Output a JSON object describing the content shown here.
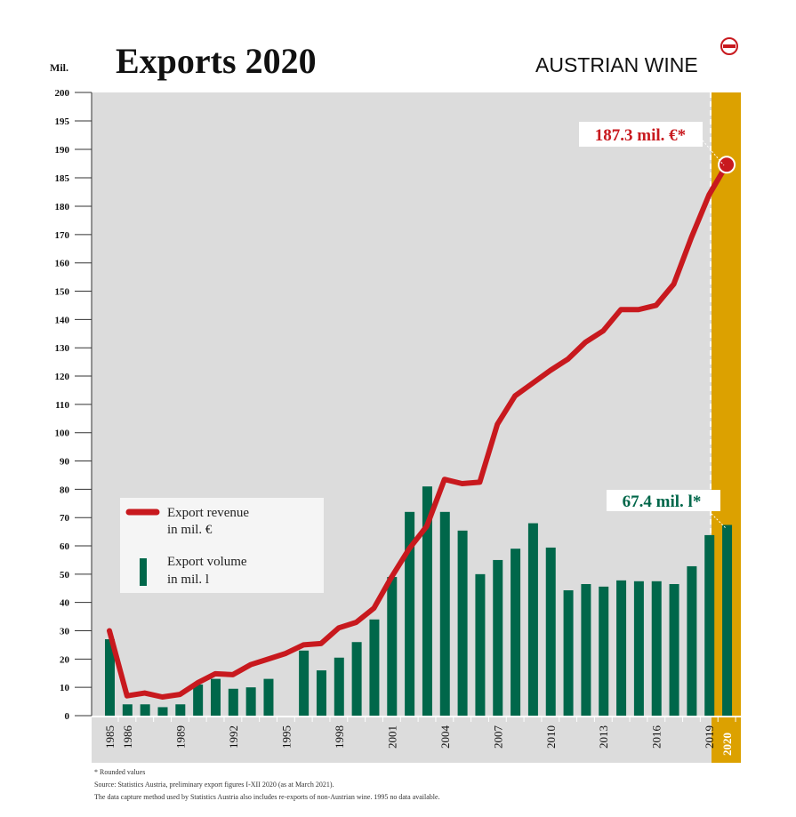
{
  "header": {
    "title": "Exports 2020",
    "unit": "Mil.",
    "logo": "AUSTRIAN WINE"
  },
  "chart_data": {
    "type": "bar+line",
    "title": "Exports 2020",
    "ylabel": "Mil.",
    "ylim": [
      0,
      200
    ],
    "yticks": [
      0,
      10,
      20,
      30,
      40,
      50,
      60,
      70,
      80,
      90,
      100,
      110,
      120,
      130,
      140,
      150,
      160,
      170,
      180,
      185,
      190,
      195,
      200
    ],
    "x": [
      1985,
      1986,
      1987,
      1988,
      1989,
      1990,
      1991,
      1992,
      1993,
      1994,
      1995,
      1996,
      1997,
      1998,
      1999,
      2000,
      2001,
      2002,
      2003,
      2004,
      2005,
      2006,
      2007,
      2008,
      2009,
      2010,
      2011,
      2012,
      2013,
      2014,
      2015,
      2016,
      2017,
      2018,
      2019,
      2020
    ],
    "xtick_labels": [
      "1985",
      "1986",
      "1989",
      "1992",
      "1995",
      "1998",
      "2001",
      "2004",
      "2007",
      "2010",
      "2013",
      "2016",
      "2019",
      "2020"
    ],
    "series": [
      {
        "name": "Export revenue in mil. €",
        "type": "line",
        "color": "#c8191e",
        "values": [
          30,
          7,
          8,
          6.6,
          7.5,
          11.6,
          14.8,
          14.5,
          18,
          20,
          22,
          25,
          25.5,
          31,
          33,
          38,
          49,
          59,
          67,
          83.5,
          82,
          82.5,
          103,
          113,
          117.5,
          122,
          126,
          132,
          136,
          143.5,
          143.5,
          145,
          152.5,
          169,
          182,
          187.3
        ]
      },
      {
        "name": "Export volume in mil. l",
        "type": "bar",
        "color": "#00674a",
        "values": [
          27,
          4,
          4,
          3,
          4,
          11,
          13,
          9.5,
          10,
          13,
          null,
          23,
          16,
          20.5,
          26,
          34,
          49,
          72,
          81,
          72,
          65.4,
          50,
          55,
          59,
          68,
          59.4,
          44.3,
          46.5,
          45.6,
          47.8,
          47.5,
          47.5,
          46.5,
          52.8,
          63.8,
          67.4
        ]
      }
    ],
    "annotations": {
      "revenue_2020": "187.3 mil. €*",
      "volume_2020": "67.4 mil. l*"
    },
    "legend": {
      "placement": "left-middle",
      "revenue_label_1": "Export revenue",
      "revenue_label_2": "in mil. €",
      "volume_label_1": "Export volume",
      "volume_label_2": "in mil. l"
    },
    "highlight_color": "#dca100"
  },
  "footnotes": [
    "* Rounded values",
    "Source: Statistics Austria, preliminary export figures I-XII 2020 (as at March 2021).",
    "The data capture method used by Statistics Austria also includes re-exports of non-Austrian wine. 1995 no data available."
  ]
}
